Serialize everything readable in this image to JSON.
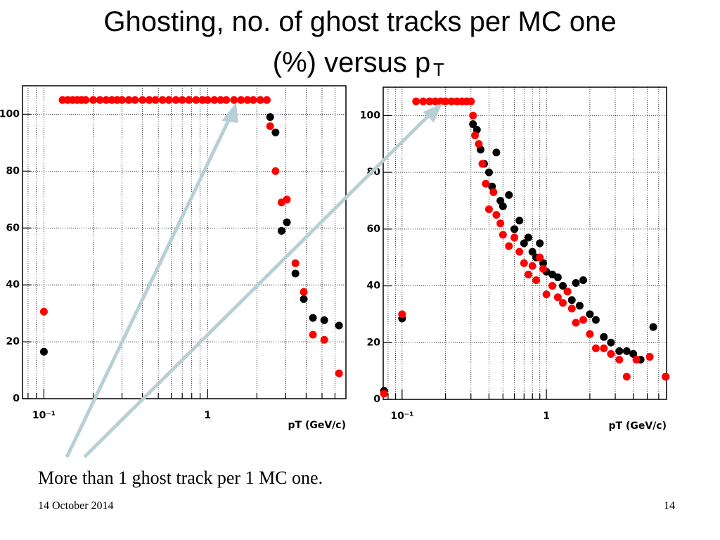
{
  "slide": {
    "title_line1": "Ghosting, no. of ghost tracks per MC one",
    "title_line2": "(%) versus p",
    "title_sub": "T",
    "caption": "More than 1 ghost track per 1 MC one.",
    "date": "14 October 2014",
    "page": 14
  },
  "chart_data": [
    {
      "type": "scatter",
      "xlabel": "pT (GeV/c)",
      "xlog": true,
      "grid": true,
      "xlim": [
        0.074,
        7.0
      ],
      "ylim": [
        0,
        110
      ],
      "xticks": [
        {
          "value": 0.1,
          "label": "10⁻¹"
        },
        1
      ],
      "minor_xticks": [
        0.08,
        0.09,
        0.2,
        0.3,
        0.4,
        0.5,
        0.6,
        0.7,
        0.8,
        0.9,
        2,
        3,
        4,
        5,
        6
      ],
      "yticks": [
        0,
        20,
        40,
        60,
        80,
        100
      ],
      "series": [
        {
          "color": "#000000",
          "x": [
            0.1,
            2.41,
            2.6,
            2.83,
            3.05,
            3.44,
            3.87,
            4.4,
            5.16,
            6.35
          ],
          "values": [
            16.5,
            99,
            93.6,
            59,
            62,
            44,
            35,
            28.4,
            27.6,
            25.7
          ]
        },
        {
          "color": "#ff0000",
          "x": [
            0.1,
            0.13,
            0.14,
            0.15,
            0.16,
            0.17,
            0.18,
            0.2,
            0.22,
            0.24,
            0.26,
            0.28,
            0.3,
            0.33,
            0.36,
            0.4,
            0.44,
            0.48,
            0.53,
            0.58,
            0.64,
            0.7,
            0.77,
            0.85,
            0.93,
            1.0,
            1.1,
            1.2,
            1.3,
            1.45,
            1.6,
            1.75,
            1.9,
            2.1,
            2.3,
            2.41,
            2.6,
            2.83,
            3.05,
            3.44,
            3.87,
            4.4,
            5.16,
            6.35
          ],
          "values": [
            30.6,
            105,
            105,
            105,
            105,
            105,
            105,
            105,
            105,
            105,
            105,
            105,
            105,
            105,
            105,
            105,
            105,
            105,
            105,
            105,
            105,
            105,
            105,
            105,
            105,
            105,
            105,
            105,
            105,
            105,
            105,
            105,
            105,
            105,
            105,
            95.8,
            80,
            69,
            70,
            47.6,
            37.5,
            22.5,
            20.7,
            8.9
          ]
        }
      ]
    },
    {
      "type": "scatter",
      "xlabel": "pT (GeV/c)",
      "xlog": true,
      "grid": true,
      "xlim": [
        0.074,
        6.8
      ],
      "ylim": [
        0,
        110
      ],
      "xticks": [
        {
          "value": 0.1,
          "label": "10⁻¹"
        },
        1
      ],
      "minor_xticks": [
        0.08,
        0.09,
        0.2,
        0.3,
        0.4,
        0.5,
        0.6,
        0.7,
        0.8,
        0.9,
        2,
        3,
        4,
        5,
        6
      ],
      "yticks": [
        0,
        20,
        40,
        60,
        80,
        100
      ],
      "series": [
        {
          "color": "#000000",
          "x": [
            0.075,
            0.1,
            0.31,
            0.33,
            0.35,
            0.37,
            0.4,
            0.42,
            0.45,
            0.48,
            0.5,
            0.55,
            0.6,
            0.65,
            0.7,
            0.75,
            0.8,
            0.85,
            0.9,
            0.95,
            1.0,
            1.1,
            1.2,
            1.3,
            1.4,
            1.5,
            1.6,
            1.7,
            1.8,
            2.0,
            2.2,
            2.5,
            2.8,
            3.2,
            3.6,
            4.0,
            4.5,
            5.5,
            6.7
          ],
          "values": [
            3,
            28.5,
            97,
            95,
            88,
            83,
            80,
            75,
            87,
            70,
            68,
            72,
            60,
            63,
            55,
            57,
            52,
            50,
            55,
            48,
            45,
            44,
            43,
            40,
            38,
            35,
            41,
            33,
            42,
            30,
            28,
            22,
            20,
            17,
            17,
            16,
            14,
            25.5,
            8
          ]
        },
        {
          "color": "#ff0000",
          "x": [
            0.075,
            0.1,
            0.125,
            0.14,
            0.155,
            0.17,
            0.185,
            0.2,
            0.22,
            0.24,
            0.26,
            0.28,
            0.3,
            0.31,
            0.32,
            0.34,
            0.36,
            0.38,
            0.4,
            0.43,
            0.45,
            0.48,
            0.5,
            0.55,
            0.6,
            0.65,
            0.7,
            0.75,
            0.8,
            0.85,
            0.9,
            0.95,
            1.0,
            1.1,
            1.2,
            1.3,
            1.4,
            1.5,
            1.6,
            1.8,
            2.0,
            2.2,
            2.5,
            2.8,
            3.2,
            3.6,
            4.2,
            5.2,
            6.7
          ],
          "values": [
            2,
            30,
            105,
            105,
            105,
            105,
            105,
            105,
            105,
            105,
            105,
            105,
            105,
            100,
            93,
            90,
            83,
            76,
            67,
            73,
            65,
            62,
            58,
            54,
            57,
            52,
            48,
            44,
            47,
            42,
            50,
            46,
            37,
            40,
            36,
            34,
            38,
            32,
            27,
            28,
            23,
            18,
            18,
            16,
            14,
            8,
            14,
            15,
            8
          ]
        }
      ]
    }
  ]
}
